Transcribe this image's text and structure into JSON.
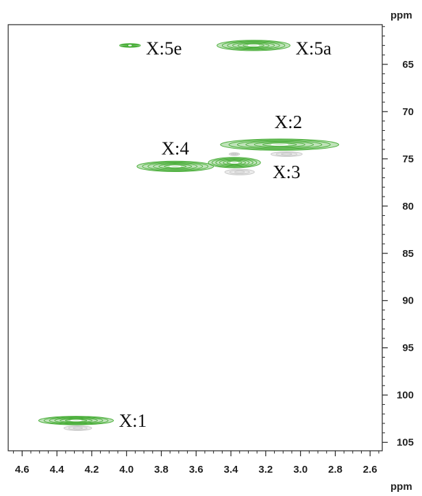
{
  "chart_data": {
    "type": "scatter",
    "title": "",
    "xlabel": "ppm",
    "ylabel": "ppm",
    "xlim": [
      4.68,
      2.53
    ],
    "ylim": [
      60.8,
      105.9
    ],
    "x_reversed": true,
    "y_reversed": true,
    "grid": false,
    "xticks": [
      "4.6",
      "4.4",
      "4.2",
      "4.0",
      "3.8",
      "3.6",
      "3.4",
      "3.2",
      "3.0",
      "2.8",
      "2.6"
    ],
    "yticks": [
      "65",
      "70",
      "75",
      "80",
      "85",
      "90",
      "95",
      "100",
      "105"
    ],
    "colors": {
      "positive": "#4aae3a",
      "negative": "#c8c8c8",
      "axis": "#222222"
    },
    "series": [
      {
        "name": "",
        "polarity": "positive",
        "color": "#4aae3a",
        "peaks": [
          {
            "label": "X:1",
            "x": 4.29,
            "y": 102.7,
            "x_width": 0.43,
            "y_width": 0.9
          },
          {
            "label": "X:2",
            "x": 3.12,
            "y": 73.5,
            "x_width": 0.68,
            "y_width": 1.2
          },
          {
            "label": "X:3",
            "x": 3.38,
            "y": 75.4,
            "x_width": 0.3,
            "y_width": 1.1
          },
          {
            "label": "X:4",
            "x": 3.72,
            "y": 75.8,
            "x_width": 0.44,
            "y_width": 1.1
          },
          {
            "label": "X:5a",
            "x": 3.27,
            "y": 63.0,
            "x_width": 0.42,
            "y_width": 1.1
          },
          {
            "label": "X:5e",
            "x": 3.98,
            "y": 63.0,
            "x_width": 0.12,
            "y_width": 0.4
          }
        ]
      },
      {
        "name": "",
        "polarity": "negative",
        "color": "#c8c8c8",
        "peaks": [
          {
            "label": "",
            "x": 4.28,
            "y": 103.5,
            "x_width": 0.16,
            "y_width": 0.5
          },
          {
            "label": "",
            "x": 3.35,
            "y": 76.4,
            "x_width": 0.17,
            "y_width": 0.6
          },
          {
            "label": "",
            "x": 3.38,
            "y": 74.5,
            "x_width": 0.06,
            "y_width": 0.3
          },
          {
            "label": "",
            "x": 3.08,
            "y": 74.5,
            "x_width": 0.18,
            "y_width": 0.5
          }
        ]
      }
    ]
  }
}
